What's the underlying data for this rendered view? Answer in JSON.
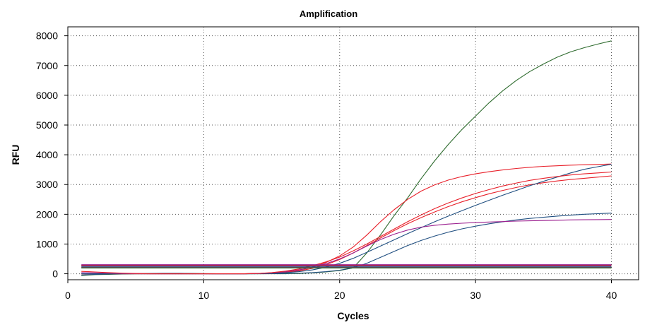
{
  "chart_data": {
    "type": "line",
    "title": "Amplification",
    "xlabel": "Cycles",
    "ylabel": "RFU",
    "xlim": [
      0,
      42
    ],
    "ylim": [
      -200,
      8300
    ],
    "xticks": [
      0,
      10,
      20,
      30,
      40
    ],
    "yticks": [
      0,
      1000,
      2000,
      3000,
      4000,
      5000,
      6000,
      7000,
      8000
    ],
    "grid": true,
    "legend": "none",
    "x": [
      1,
      2,
      3,
      4,
      5,
      6,
      7,
      8,
      9,
      10,
      11,
      12,
      13,
      14,
      15,
      16,
      17,
      18,
      19,
      20,
      21,
      22,
      23,
      24,
      25,
      26,
      27,
      28,
      29,
      30,
      31,
      32,
      33,
      34,
      35,
      36,
      37,
      38,
      39,
      40
    ],
    "series": [
      {
        "color": "#2e6b2e",
        "values": [
          -60,
          -30,
          -20,
          -10,
          0,
          5,
          8,
          10,
          10,
          5,
          0,
          0,
          0,
          0,
          0,
          0,
          10,
          30,
          60,
          110,
          200,
          700,
          1300,
          1950,
          2550,
          3200,
          3800,
          4350,
          4850,
          5300,
          5750,
          6150,
          6500,
          6800,
          7050,
          7280,
          7460,
          7600,
          7720,
          7830
        ]
      },
      {
        "color": "#e8202a",
        "values": [
          0,
          0,
          0,
          0,
          0,
          0,
          0,
          0,
          0,
          0,
          0,
          0,
          0,
          10,
          30,
          60,
          120,
          220,
          380,
          600,
          900,
          1300,
          1750,
          2150,
          2500,
          2780,
          2990,
          3150,
          3270,
          3360,
          3430,
          3490,
          3540,
          3580,
          3610,
          3630,
          3650,
          3665,
          3675,
          3690
        ]
      },
      {
        "color": "#e8202a",
        "values": [
          0,
          0,
          0,
          0,
          0,
          0,
          0,
          0,
          0,
          0,
          0,
          0,
          0,
          10,
          25,
          50,
          100,
          180,
          300,
          480,
          700,
          950,
          1200,
          1450,
          1680,
          1890,
          2080,
          2260,
          2420,
          2560,
          2690,
          2800,
          2900,
          2990,
          3060,
          3120,
          3170,
          3210,
          3250,
          3290
        ]
      },
      {
        "color": "#1f4e80",
        "values": [
          0,
          0,
          0,
          0,
          0,
          0,
          0,
          0,
          0,
          0,
          0,
          0,
          0,
          5,
          15,
          35,
          70,
          130,
          220,
          350,
          520,
          720,
          930,
          1140,
          1350,
          1550,
          1750,
          1940,
          2120,
          2300,
          2470,
          2640,
          2800,
          2960,
          3110,
          3250,
          3390,
          3510,
          3600,
          3680
        ]
      },
      {
        "color": "#1f4e80",
        "values": [
          -40,
          -20,
          -10,
          0,
          5,
          10,
          15,
          15,
          10,
          5,
          0,
          0,
          0,
          0,
          5,
          10,
          20,
          40,
          70,
          120,
          200,
          350,
          550,
          750,
          950,
          1120,
          1270,
          1400,
          1510,
          1600,
          1680,
          1750,
          1810,
          1860,
          1900,
          1940,
          1970,
          2000,
          2020,
          2040
        ]
      },
      {
        "color": "#9b1f8f",
        "values": [
          40,
          30,
          20,
          10,
          5,
          0,
          0,
          0,
          0,
          0,
          0,
          0,
          0,
          10,
          30,
          70,
          130,
          220,
          340,
          500,
          700,
          930,
          1150,
          1330,
          1470,
          1570,
          1630,
          1670,
          1700,
          1720,
          1740,
          1755,
          1770,
          1780,
          1790,
          1800,
          1810,
          1815,
          1820,
          1825
        ]
      },
      {
        "color": "#e8202a",
        "values": [
          80,
          60,
          40,
          20,
          10,
          0,
          0,
          0,
          0,
          0,
          0,
          0,
          0,
          10,
          40,
          90,
          160,
          270,
          400,
          560,
          770,
          1000,
          1250,
          1500,
          1750,
          1980,
          2190,
          2380,
          2550,
          2700,
          2830,
          2950,
          3050,
          3140,
          3210,
          3270,
          3320,
          3360,
          3390,
          3420
        ]
      },
      {
        "color": "#9b1f8f",
        "values": [
          300,
          300,
          300,
          300,
          300,
          300,
          300,
          300,
          300,
          300,
          300,
          300,
          300,
          300,
          300,
          300,
          300,
          300,
          300,
          300,
          300,
          300,
          300,
          300,
          300,
          300,
          300,
          300,
          300,
          300,
          300,
          300,
          300,
          300,
          300,
          300,
          300,
          300,
          300,
          300
        ]
      },
      {
        "color": "#e8202a",
        "values": [
          270,
          270,
          270,
          270,
          270,
          270,
          270,
          270,
          270,
          270,
          270,
          270,
          270,
          270,
          270,
          270,
          270,
          270,
          270,
          270,
          270,
          270,
          270,
          270,
          270,
          270,
          270,
          270,
          270,
          270,
          270,
          270,
          270,
          270,
          270,
          270,
          270,
          270,
          270,
          270
        ]
      },
      {
        "color": "#1f4e80",
        "values": [
          250,
          250,
          250,
          250,
          250,
          250,
          250,
          250,
          250,
          250,
          250,
          250,
          250,
          250,
          250,
          250,
          250,
          250,
          250,
          250,
          250,
          250,
          250,
          250,
          250,
          250,
          250,
          250,
          250,
          250,
          250,
          250,
          250,
          250,
          250,
          250,
          250,
          250,
          250,
          250
        ]
      },
      {
        "color": "#9b1f8f",
        "values": [
          210,
          210,
          210,
          210,
          210,
          210,
          210,
          210,
          210,
          210,
          210,
          210,
          210,
          210,
          210,
          210,
          210,
          210,
          210,
          210,
          210,
          210,
          210,
          210,
          210,
          210,
          210,
          210,
          210,
          210,
          210,
          210,
          210,
          210,
          210,
          210,
          210,
          210,
          210,
          210
        ]
      },
      {
        "color": "#2e6b2e",
        "values": [
          200,
          200,
          200,
          200,
          200,
          200,
          200,
          200,
          200,
          200,
          200,
          200,
          200,
          200,
          200,
          200,
          200,
          200,
          200,
          200,
          200,
          200,
          200,
          200,
          200,
          200,
          200,
          200,
          200,
          200,
          200,
          200,
          200,
          200,
          200,
          200,
          200,
          200,
          200,
          200
        ]
      }
    ]
  }
}
